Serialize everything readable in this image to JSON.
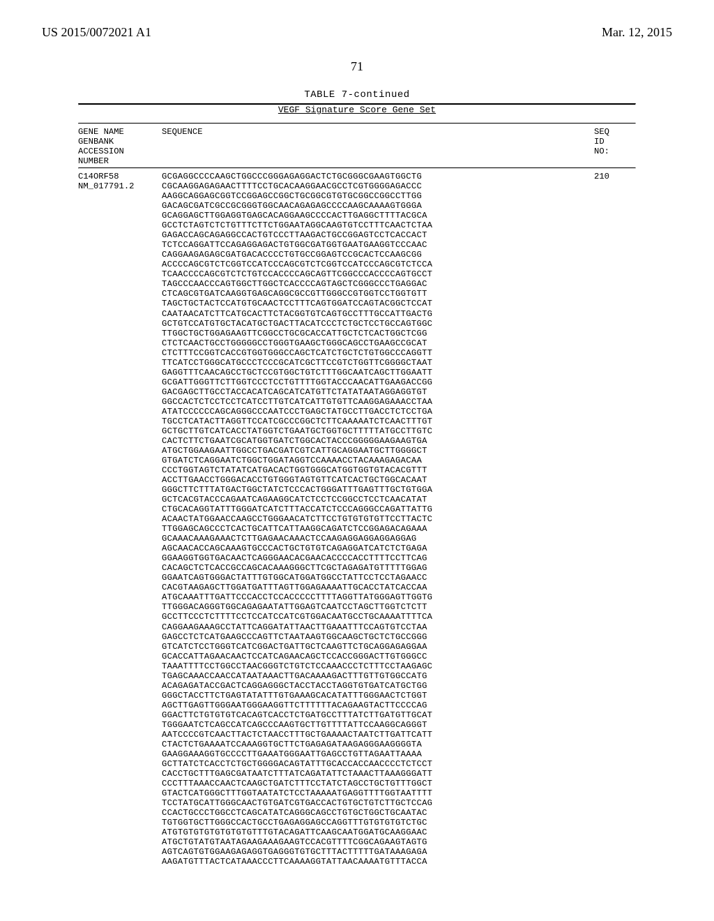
{
  "header": {
    "pub_number": "US 2015/0072021 A1",
    "pub_date": "Mar. 12, 2015"
  },
  "page_number": "71",
  "table": {
    "title": "TABLE 7-continued",
    "subtitle": "VEGF Signature Score Gene Set",
    "col_header_left": "GENE NAME\nGENBANK\nACCESSION\nNUMBER",
    "col_header_mid": "SEQUENCE",
    "col_header_right": "SEQ\nID\nNO:",
    "row": {
      "gene_left": "C14ORF58\nNM_017791.2",
      "seq_id": "210",
      "sequence_lines": [
        "GCGAGGCCCCAAGCTGGCCCGGGAGAGGACTCTGCGGGCGAAGTGGCTG",
        "CGCAAGGAGAGAACTTTTCCTGCACAAGGAACGCCTCGTGGGGAGACCC",
        "AAGGCAGGAGCGGTCCGGAGCCGGCTGCGGCGTGTGCGGCCGGCCTTGG",
        "GACAGCGATCGCCGCGGGTGGCAACAGAGAGCCCCAAGCAAAAGTGGGA",
        "GCAGGAGCTTGGAGGTGAGCACAGGAAGCCCCACTTGAGGCTTTTACGCA",
        "GCCTCTAGTCTCTGTTTCTTCTGGAATAGGCAAGTGTCCTTTCAACTCTAA",
        "GAGACCAGCAGAGGCCACTGTCCCTTAAGACTGCCGGAGTCCTCACCACT",
        "TCTCCAGGATTCCAGAGGAGACTGTGGCGATGGTGAATGAAGGTCCCAAC",
        "CAGGAAGAGAGCGATGACACCCCTGTGCCGGAGTCCGCACTCCAAGCGG",
        "ACCCCAGCGTCTCGGTCCATCCCAGCGTCTCGGTCCATCCCAGCGTCTCCA",
        "TCAACCCCAGCGTCTCTGTCCACCCCAGCAGTTCGGCCCACCCCAGTGCCT",
        "TAGCCCAACCCAGTGGCTTGGCTCACCCCAGTAGCTCGGGCCCTGAGGAC",
        "CTCAGCGTGATCAAGGTGAGCAGGCGCCGTTGGGCCGTGGTCCTGGTGTT",
        "TAGCTGCTACTCCATGTGCAACTCCTTTCAGTGGATCCAGTACGGCTCCAT",
        "CAATAACATCTTCATGCACTTCTACGGTGTCAGTGCCTTTGCCATTGACTG",
        "GCTGTCCATGTGCTACATGCTGACTTACATCCCTCTGCTCCTGCCAGTGGC",
        "TTGGCTGCTGGAGAAGTTCGGCCTGCGCACCATTGCTCTCACTGGCTCGG",
        "CTCTCAACTGCCTGGGGGCCTGGGTGAAGCTGGGCAGCCTGAAGCCGCAT",
        "CTCTTTCCGGTCACCGTGGTGGGCCAGCTCATCTGCTCTGTGGCCCAGGTT",
        "TTCATCCTGGGCATGCCCTCCCGCATCGCTTCCGTCTGGTTCGGGGCTAAT",
        "GAGGTTTCAACAGCCTGCTCCGTGGCTGTCTTTGGCAATCAGCTTGGAATT",
        "GCGATTGGGTTCTTGGTCCCTCCTGTTTTGGTACCCAACATTGAAGACCGG",
        "GACGAGCTTGCCTACCACATCAGCATCATGTTCTATATAATAGGAGGTGT",
        "GGCCACTCTCCTCCTCATCCTTGTCATCATTGTGTTCAAGGAGAAACCTAA",
        "ATATCCCCCCAGCAGGGCCCAATCCCTGAGCTATGCCTTGACCTCTCCTGA",
        "TGCCTCATACTTAGGTTCCATCGCCCGGCTCTTCAAAAATCTCAACTTTGT",
        "GCTGCTTGTCATCACCTATGGTCTGAATGCTGGTGCTTTTTATGCCTTGTC",
        "CACTCTTCTGAATCGCATGGTGATCTGGCACTACCCGGGGGAAGAAGTGA",
        "ATGCTGGAAGAATTGGCCTGACGATCGTCATTGCAGGAATGCTTGGGGCT",
        "GTGATCTCAGGAATCTGGCTGGATAGGTCCAAAACCTACAAAGAGACAA",
        "CCCTGGTAGTCTATATCATGACACTGGTGGGCATGGTGGTGTACACGTTT",
        "ACCTTGAACCTGGGACACCTGTGGGTAGTGTTCATCACTGCTGGCACAAT",
        "GGGCTTCTTTATGACTGGCTATCTCCCACTGGGATTTGAGTTTGCTGTGGA",
        "GCTCACGTACCCAGAATCAGAAGGCATCTCCTCCGGCCTCCTCAACATAT",
        "CTGCACAGGTATTTGGGATCATCTTTACCATCTCCCAGGGCCAGATTATTG",
        "ACAACTATGGAACCAAGCCTGGGAACATCTTCCTGTGTGTGTTCCTTACTC",
        "TTGGAGCAGCCCTCACTGCATTCATTAAGGCAGATCTCCGGAGACAGAAA",
        "GCAAACAAAGAAACTCTTGAGAACAAACTCCAAGAGGAGGAGGAGGAG",
        "AGCAACACCAGCAAAGTGCCCACTGCTGTGTCAGAGGATCATCTCTGAGA",
        "GGAAGGTGGTGACAACTCAGGGAACACGAACACCCCACCTTTTCCTTCAG",
        "CACAGCTCTCACCGCCAGCACAAAGGGCTTCGCTAGAGATGTTTTTGGAG",
        "GGAATCAGTGGGACTATTTGTGGCATGGATGGCCTATTCCTCCTAGAACC",
        "CACGTAAGAGCTTGGATGATTTAGTTGGAGAAAATTGCACCTATCACCAA",
        "ATGCAAATTTGATTCCCACCTCCACCCCCTTTTAGGTTATGGGAGTTGGTG",
        "TTGGGACAGGGTGGCAGAGAATATTGGAGTCAATCCTAGCTTGGTCTCTT",
        "GCCTTCCCTCTTTTCCTCCATCCATCGTGGACAATGCCTGCAAAATTTTCA",
        "CAGGAAGAAAGCCTATTCAGGATATTAACTTGAAATTTCCAGTGTCCTAA",
        "GAGCCTCTCATGAAGCCCAGTTCTAATAAGTGGCAAGCTGCTCTGCCGGG",
        "GTCATCTCCTGGGTCATCGGACTGATTGCTCAAGTTCTGCAGGAGAGGAA",
        "GCACCATTAGAACAACTCCATCAGAACAGCTCCACCGGGACTTGTGGGCC",
        "TAAATTTTCCTGGCCTAACGGGTCTGTCTCCAAACCCTCTTTCCTAAGAGC",
        "TGAGCAAACCAACCATAATAAACTTGACAAAAGACTTTGTTGTGGCCATG",
        "ACAGAGATACCGACTCAGGAGGGCTACCTACCTAGGTGTGATCATGCTGG",
        "GGGCTACCTTCTGAGTATATTTGTGAAAGCACATATTTGGGAACTCTGGT",
        "AGCTTGAGTTGGGAATGGGAAGGTTCTTTTTTACAGAAGTACTTCCCCAG",
        "GGACTTCTGTGTGTCACAGTCACCTCTGATGCCTTTATCTTGATGTTGCAT",
        "TGGGAATCTCAGCCATCAGCCCAAGTGCTTGTTTTATTCCAAGGCAGGGT",
        "AATCCCCGTCAACTTACTCTAACCTTTGCTGAAAACTAATCTTGATTCATT",
        "CTACTCTGAAAATCCAAAGGTGCTTCTGAGAGATAAGAGGGAAGGGGTA",
        "GAAGGAAAGGTGCCCCTTGAAATGGGAATTGAGCCTGTTAGAATTAAAA",
        "GCTTATCTCACCTCTGCTGGGGACAGTATTTGCACCACCAACCCCTCTCCT",
        "CACCTGCTTTGAGCGATAATCTTTATCAGATATTCTAAACTTAAAGGGATT",
        "CCCTTTAAACCAACTCAAGCTGATCTTTCCTATCTAGCCTGCTGTTTGGCT",
        "GTACTCATGGGCTTTGGTAATATCTCCTAAAAATGAGGTTTTGGTAATTTT",
        "TCCTATGCATTGGGCAACTGTGATCGTGACCACTGTGCTGTCTTGCTCCAG",
        "CCACTGCCCTGGCCTCAGCATATCAGGGCAGCCTGTGCTGGCTGCAATAC",
        "TGTGGTGCTTGGGCCACTGCCTGAGAGGAGCCAGGTTTGTGTGTGTCTGC",
        "ATGTGTGTGTGTGTGTGTTTGTACAGATTCAAGCAATGGATGCAAGGAAC",
        "ATGCTGTATGTAATAGAAGAAAGAAGTCCACGTTTTCGGCAGAAGTAGTG",
        "AGTCAGTGTGGAAGAGAGGTGAGGGTGTGCTTTACTTTTTGATAAAGAGA",
        "AAGATGTTTACTCATAAACCCTTCAAAAGGTATTAACAAAATGTTTACCA"
      ]
    }
  }
}
